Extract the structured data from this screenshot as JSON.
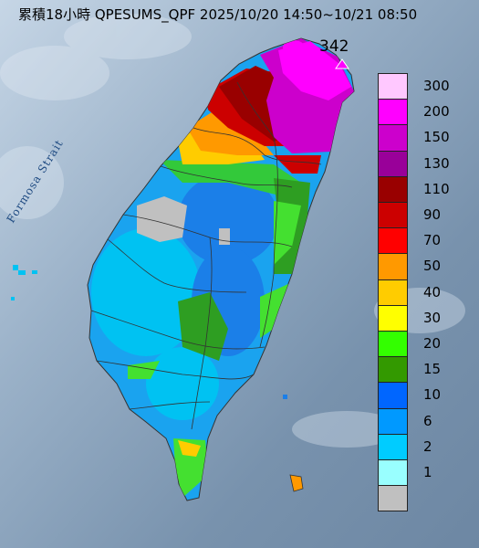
{
  "title": "累積18小時 QPESUMS_QPF 2025/10/20 14:50~10/21 08:50",
  "max_label": "342",
  "sea_label": "Formosa Strait",
  "legend": [
    {
      "label": "300",
      "color": "#ffc8ff"
    },
    {
      "label": "200",
      "color": "#ff00ff"
    },
    {
      "label": "150",
      "color": "#cc00cc"
    },
    {
      "label": "130",
      "color": "#990099"
    },
    {
      "label": "110",
      "color": "#990000"
    },
    {
      "label": "90",
      "color": "#cc0000"
    },
    {
      "label": "70",
      "color": "#ff0000"
    },
    {
      "label": "50",
      "color": "#ff9900"
    },
    {
      "label": "40",
      "color": "#ffcc00"
    },
    {
      "label": "30",
      "color": "#ffff00"
    },
    {
      "label": "20",
      "color": "#33ff00"
    },
    {
      "label": "15",
      "color": "#339900"
    },
    {
      "label": "10",
      "color": "#0066ff"
    },
    {
      "label": "6",
      "color": "#0099ff"
    },
    {
      "label": "2",
      "color": "#00ccff"
    },
    {
      "label": "1",
      "color": "#99ffff"
    },
    {
      "label": "",
      "color": "#c0c0c0"
    }
  ]
}
